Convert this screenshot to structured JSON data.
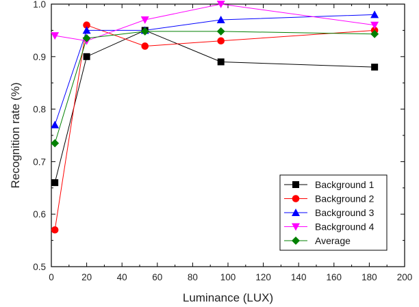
{
  "chart_data": {
    "type": "line",
    "title": "",
    "xlabel": "Luminance (LUX)",
    "ylabel": "Recognition rate (%)",
    "xlim": [
      0,
      200
    ],
    "ylim": [
      0.5,
      1.0
    ],
    "x_ticks": [
      0,
      20,
      40,
      60,
      80,
      100,
      120,
      140,
      160,
      180,
      200
    ],
    "y_ticks": [
      0.5,
      0.6,
      0.7,
      0.8,
      0.9,
      1.0
    ],
    "x_tick_labels": [
      "0",
      "20",
      "40",
      "60",
      "80",
      "100",
      "120",
      "140",
      "160",
      "180",
      "200"
    ],
    "y_tick_labels": [
      "0.5",
      "0.6",
      "0.7",
      "0.8",
      "0.9",
      "1.0"
    ],
    "grid": false,
    "legend_position": "bottom-right",
    "x": [
      2,
      20,
      53,
      96,
      183
    ],
    "series": [
      {
        "name": "Background 1",
        "values": [
          0.66,
          0.9,
          0.95,
          0.89,
          0.88
        ],
        "color": "#000000",
        "marker": "square"
      },
      {
        "name": "Background 2",
        "values": [
          0.57,
          0.96,
          0.92,
          0.93,
          0.95
        ],
        "color": "#ff0000",
        "marker": "circle"
      },
      {
        "name": "Background 3",
        "values": [
          0.77,
          0.95,
          0.95,
          0.97,
          0.98
        ],
        "color": "#0000ff",
        "marker": "triangle-up"
      },
      {
        "name": "Background 4",
        "values": [
          0.94,
          0.93,
          0.97,
          1.0,
          0.96
        ],
        "color": "#ff00ff",
        "marker": "triangle-down"
      },
      {
        "name": "Average",
        "values": [
          0.735,
          0.935,
          0.948,
          0.948,
          0.943
        ],
        "color": "#008000",
        "marker": "diamond"
      }
    ]
  }
}
